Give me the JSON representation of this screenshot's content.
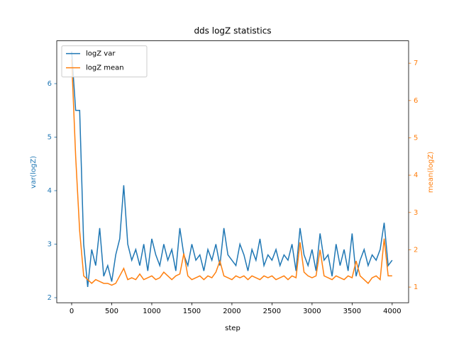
{
  "chart_data": {
    "type": "line",
    "title": "dds logZ statistics",
    "xlabel": "step",
    "ylabel": "var(logZ)",
    "y2label": "mean(logZ)",
    "x": [
      0,
      50,
      100,
      150,
      200,
      250,
      300,
      350,
      400,
      450,
      500,
      550,
      600,
      650,
      700,
      750,
      800,
      850,
      900,
      950,
      1000,
      1050,
      1100,
      1150,
      1200,
      1250,
      1300,
      1350,
      1400,
      1450,
      1500,
      1550,
      1600,
      1650,
      1700,
      1750,
      1800,
      1850,
      1900,
      1950,
      2000,
      2050,
      2100,
      2150,
      2200,
      2250,
      2300,
      2350,
      2400,
      2450,
      2500,
      2550,
      2600,
      2650,
      2700,
      2750,
      2800,
      2850,
      2900,
      2950,
      3000,
      3050,
      3100,
      3150,
      3200,
      3250,
      3300,
      3350,
      3400,
      3450,
      3500,
      3550,
      3600,
      3650,
      3700,
      3750,
      3800,
      3850,
      3900,
      3950,
      4000
    ],
    "series": [
      {
        "name": "logZ var",
        "color": "#1f77b4",
        "axis": "y",
        "values": [
          6.6,
          5.5,
          5.5,
          3.0,
          2.2,
          2.9,
          2.6,
          3.3,
          2.4,
          2.6,
          2.3,
          2.8,
          3.1,
          4.1,
          3.0,
          2.7,
          2.9,
          2.6,
          3.0,
          2.5,
          3.1,
          2.8,
          2.6,
          3.0,
          2.7,
          2.9,
          2.5,
          3.3,
          2.8,
          2.6,
          3.0,
          2.7,
          2.8,
          2.5,
          2.9,
          2.7,
          3.0,
          2.6,
          3.3,
          2.8,
          2.7,
          2.6,
          3.0,
          2.8,
          2.5,
          2.9,
          2.7,
          3.1,
          2.6,
          2.8,
          2.7,
          2.9,
          2.6,
          2.8,
          2.7,
          3.0,
          2.5,
          3.3,
          2.8,
          2.6,
          2.9,
          2.5,
          3.2,
          2.7,
          2.8,
          2.4,
          3.0,
          2.6,
          2.9,
          2.5,
          3.2,
          2.4,
          2.7,
          2.9,
          2.6,
          2.8,
          2.7,
          2.9,
          3.4,
          2.6,
          2.7
        ]
      },
      {
        "name": "logZ mean",
        "color": "#ff7f0e",
        "axis": "y2",
        "values": [
          7.1,
          4.5,
          2.5,
          1.3,
          1.2,
          1.1,
          1.2,
          1.15,
          1.1,
          1.1,
          1.05,
          1.1,
          1.3,
          1.5,
          1.2,
          1.25,
          1.2,
          1.35,
          1.2,
          1.25,
          1.3,
          1.2,
          1.25,
          1.4,
          1.3,
          1.2,
          1.3,
          1.35,
          1.9,
          1.3,
          1.2,
          1.25,
          1.3,
          1.2,
          1.3,
          1.25,
          1.4,
          1.7,
          1.3,
          1.25,
          1.2,
          1.3,
          1.25,
          1.3,
          1.2,
          1.3,
          1.25,
          1.2,
          1.3,
          1.25,
          1.3,
          1.2,
          1.25,
          1.3,
          1.2,
          1.3,
          1.25,
          2.2,
          1.4,
          1.3,
          1.25,
          1.3,
          2.0,
          1.3,
          1.25,
          1.2,
          1.3,
          1.25,
          1.2,
          1.3,
          1.25,
          1.7,
          1.3,
          1.2,
          1.1,
          1.25,
          1.3,
          1.2,
          2.3,
          1.3,
          1.3
        ]
      }
    ],
    "xlim": [
      -186,
      4205
    ],
    "xticks": [
      0,
      500,
      1000,
      1500,
      2000,
      2500,
      3000,
      3500,
      4000
    ],
    "ylim": [
      1.905,
      6.8
    ],
    "yticks": [
      2,
      3,
      4,
      5,
      6
    ],
    "y2lim": [
      0.58,
      7.6
    ],
    "y2ticks": [
      1,
      2,
      3,
      4,
      5,
      6,
      7
    ],
    "legend": "upper left"
  }
}
